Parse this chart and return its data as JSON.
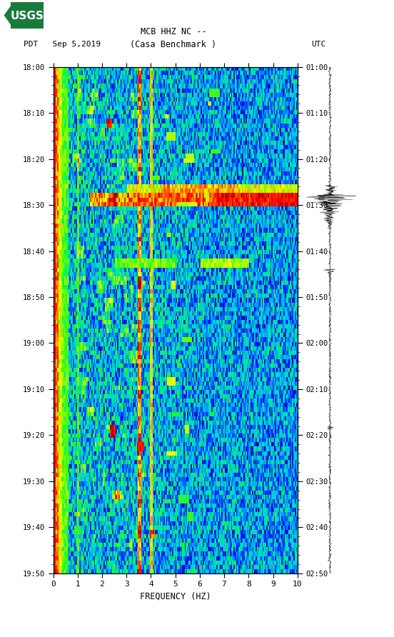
{
  "title_line1": "MCB HHZ NC --",
  "title_line2": "(Casa Benchmark )",
  "date_label": "PDT   Sep 5,2019",
  "utc_label": "UTC",
  "freq_label": "FREQUENCY (HZ)",
  "freq_min": 0,
  "freq_max": 10,
  "freq_ticks": [
    0,
    1,
    2,
    3,
    4,
    5,
    6,
    7,
    8,
    9,
    10
  ],
  "pdt_ticks": [
    "18:00",
    "18:10",
    "18:20",
    "18:30",
    "18:40",
    "18:50",
    "19:00",
    "19:10",
    "19:20",
    "19:30",
    "19:40",
    "19:50"
  ],
  "utc_ticks": [
    "01:00",
    "01:10",
    "01:20",
    "01:30",
    "01:40",
    "01:50",
    "02:00",
    "02:10",
    "02:20",
    "02:30",
    "02:40",
    "02:50"
  ],
  "bg_color": "#ffffff",
  "usgs_green": "#1a7a3c",
  "font_family": "monospace",
  "n_time": 116,
  "n_freq": 200,
  "vline_color": "#888888",
  "vline_alpha": 0.5,
  "vline_lw": 0.5
}
